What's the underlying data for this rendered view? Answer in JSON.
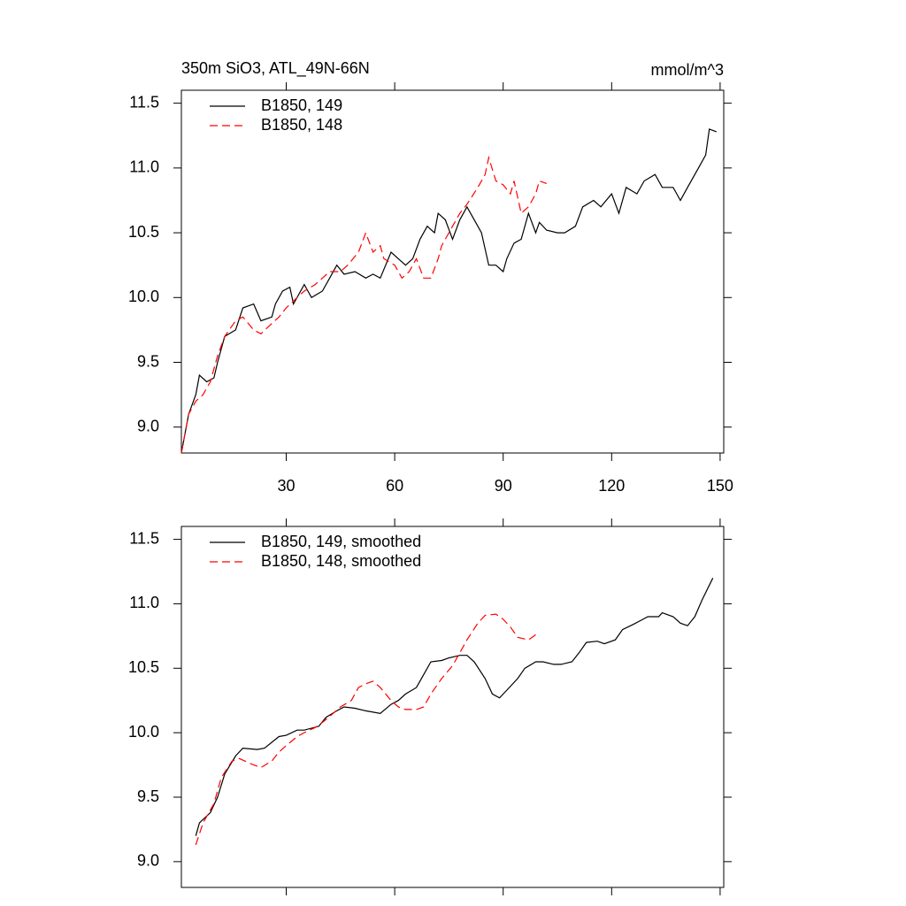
{
  "chart_data": [
    {
      "type": "line",
      "title": "350m SiO3, ATL_49N-66N",
      "units": "mmol/m^3",
      "xlim": [
        1,
        151
      ],
      "xticks": [
        30,
        60,
        90,
        120,
        150
      ],
      "x_tick_labels": true,
      "ylim": [
        8.8,
        11.6
      ],
      "yticks": [
        {
          "value": 9,
          "label": "9.0"
        },
        9.5,
        {
          "value": 10,
          "label": "10.0"
        },
        10.5,
        {
          "value": 11,
          "label": "11.0"
        },
        11.5
      ],
      "legend": "top-left",
      "series": [
        {
          "name": "B1850, 149",
          "color": "#000000",
          "dashed": false,
          "x": [
            1,
            3,
            5,
            6,
            8,
            10,
            11,
            13,
            16,
            18,
            21,
            23,
            26,
            27,
            29,
            31,
            32,
            35,
            37,
            40,
            42,
            44,
            46,
            49,
            52,
            54,
            56,
            59,
            61,
            63,
            65,
            67,
            69,
            71,
            72,
            74,
            76,
            78,
            80,
            82,
            84,
            86,
            88,
            90,
            91,
            93,
            95,
            97,
            99,
            100,
            102,
            105,
            107,
            110,
            112,
            115,
            117,
            120,
            122,
            124,
            127,
            129,
            132,
            134,
            137,
            139,
            141,
            144,
            146,
            147,
            149
          ],
          "values": [
            8.8,
            9.1,
            9.25,
            9.4,
            9.35,
            9.38,
            9.5,
            9.7,
            9.75,
            9.92,
            9.95,
            9.82,
            9.85,
            9.95,
            10.05,
            10.08,
            9.95,
            10.1,
            10.0,
            10.05,
            10.15,
            10.25,
            10.18,
            10.2,
            10.15,
            10.18,
            10.15,
            10.35,
            10.3,
            10.25,
            10.3,
            10.45,
            10.55,
            10.5,
            10.65,
            10.6,
            10.45,
            10.6,
            10.7,
            10.6,
            10.5,
            10.25,
            10.25,
            10.2,
            10.3,
            10.42,
            10.45,
            10.65,
            10.5,
            10.58,
            10.52,
            10.5,
            10.5,
            10.55,
            10.7,
            10.75,
            10.7,
            10.8,
            10.65,
            10.85,
            10.8,
            10.9,
            10.95,
            10.85,
            10.85,
            10.75,
            10.85,
            11.0,
            11.1,
            11.3,
            11.28
          ]
        },
        {
          "name": "B1850, 148",
          "color": "#ff0000",
          "dashed": true,
          "x": [
            1,
            3,
            5,
            7,
            9,
            11,
            13,
            16,
            18,
            21,
            23,
            26,
            28,
            30,
            33,
            35,
            38,
            40,
            42,
            45,
            47,
            50,
            52,
            54,
            56,
            57,
            60,
            62,
            64,
            66,
            68,
            70,
            72,
            73,
            76,
            78,
            80,
            83,
            85,
            86,
            88,
            90,
            92,
            93,
            95,
            97,
            99,
            100,
            102
          ],
          "values": [
            8.8,
            9.1,
            9.2,
            9.25,
            9.35,
            9.55,
            9.7,
            9.82,
            9.85,
            9.75,
            9.72,
            9.8,
            9.85,
            9.92,
            10.0,
            10.05,
            10.1,
            10.15,
            10.2,
            10.2,
            10.25,
            10.35,
            10.5,
            10.35,
            10.4,
            10.3,
            10.25,
            10.15,
            10.2,
            10.3,
            10.15,
            10.15,
            10.3,
            10.4,
            10.55,
            10.65,
            10.72,
            10.85,
            10.95,
            11.08,
            10.9,
            10.87,
            10.8,
            10.9,
            10.65,
            10.7,
            10.8,
            10.9,
            10.88
          ]
        }
      ]
    },
    {
      "type": "line",
      "xlim": [
        1,
        151
      ],
      "xticks": [
        30,
        60,
        90,
        120,
        150
      ],
      "x_tick_labels": false,
      "ylim": [
        8.8,
        11.6
      ],
      "yticks": [
        {
          "value": 9,
          "label": "9.0"
        },
        9.5,
        {
          "value": 10,
          "label": "10.0"
        },
        10.5,
        {
          "value": 11,
          "label": "11.0"
        },
        11.5
      ],
      "legend": "top-left",
      "series": [
        {
          "name": "B1850, 149, smoothed",
          "color": "#000000",
          "dashed": false,
          "x": [
            5,
            6,
            9,
            11,
            13,
            16,
            18,
            22,
            24,
            28,
            30,
            33,
            35,
            39,
            41,
            44,
            46,
            49,
            52,
            56,
            59,
            61,
            63,
            66,
            68,
            70,
            73,
            75,
            78,
            80,
            82,
            85,
            87,
            89,
            91,
            94,
            96,
            99,
            101,
            104,
            106,
            109,
            111,
            113,
            116,
            118,
            121,
            123,
            126,
            128,
            130,
            133,
            134,
            137,
            139,
            141,
            143,
            145,
            148
          ],
          "values": [
            9.2,
            9.3,
            9.38,
            9.5,
            9.68,
            9.82,
            9.88,
            9.87,
            9.88,
            9.97,
            9.98,
            10.02,
            10.02,
            10.05,
            10.12,
            10.17,
            10.2,
            10.19,
            10.17,
            10.15,
            10.22,
            10.25,
            10.3,
            10.35,
            10.45,
            10.55,
            10.56,
            10.58,
            10.6,
            10.6,
            10.55,
            10.42,
            10.3,
            10.27,
            10.33,
            10.42,
            10.5,
            10.55,
            10.55,
            10.53,
            10.53,
            10.55,
            10.62,
            10.7,
            10.71,
            10.69,
            10.72,
            10.8,
            10.84,
            10.87,
            10.9,
            10.9,
            10.93,
            10.9,
            10.85,
            10.83,
            10.9,
            11.03,
            11.2
          ]
        },
        {
          "name": "B1850, 148, smoothed",
          "color": "#ff0000",
          "dashed": true,
          "x": [
            5,
            7,
            10,
            12,
            15,
            17,
            21,
            23,
            26,
            28,
            30,
            33,
            35,
            38,
            40,
            43,
            45,
            48,
            50,
            52,
            54,
            56,
            59,
            61,
            63,
            66,
            68,
            70,
            73,
            76,
            78,
            80,
            83,
            85,
            88,
            90,
            92,
            94,
            97,
            100
          ],
          "values": [
            9.13,
            9.3,
            9.45,
            9.65,
            9.78,
            9.8,
            9.75,
            9.73,
            9.78,
            9.85,
            9.9,
            9.97,
            10.0,
            10.04,
            10.08,
            10.15,
            10.2,
            10.25,
            10.35,
            10.38,
            10.4,
            10.35,
            10.25,
            10.2,
            10.18,
            10.18,
            10.2,
            10.3,
            10.42,
            10.52,
            10.62,
            10.72,
            10.85,
            10.91,
            10.92,
            10.88,
            10.82,
            10.74,
            10.72,
            10.78
          ]
        }
      ]
    }
  ]
}
